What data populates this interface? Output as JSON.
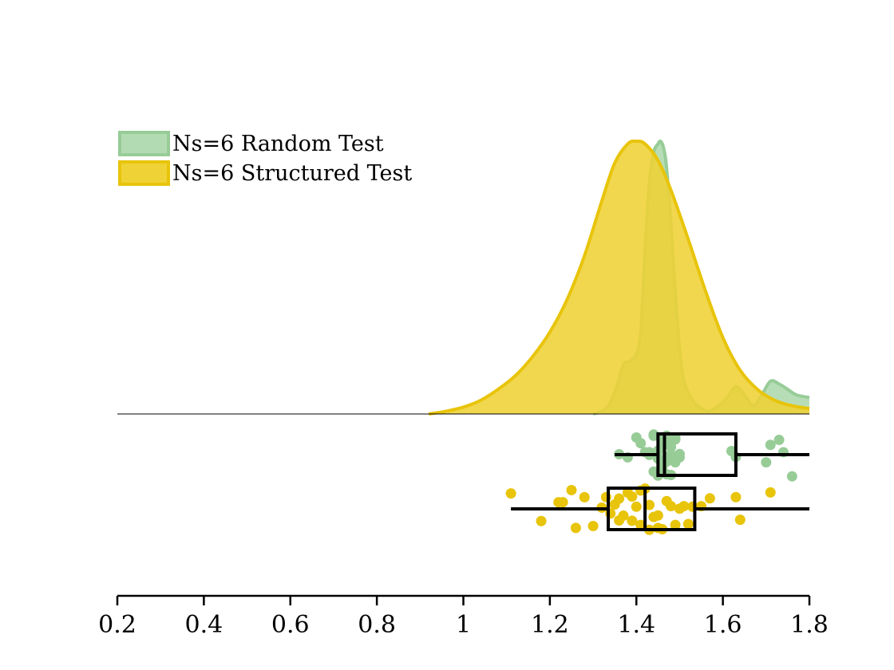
{
  "chart_data": {
    "type": "raincloud",
    "xlim": [
      0.2,
      1.8
    ],
    "xticks": [
      0.2,
      0.4,
      0.6,
      0.8,
      1,
      1.2,
      1.4,
      1.6,
      1.8
    ],
    "xtick_labels": [
      "0.2",
      "0.4",
      "0.6",
      "0.8",
      "1",
      "1.2",
      "1.4",
      "1.6",
      "1.8"
    ],
    "legend": {
      "position": "top-left"
    },
    "series": [
      {
        "name": "Ns=6 Random Test",
        "color": "#97cc97",
        "fill": "#b3dbb3",
        "density": {
          "x": [
            1.3,
            1.33,
            1.35,
            1.37,
            1.38,
            1.39,
            1.4,
            1.41,
            1.42,
            1.43,
            1.44,
            1.45,
            1.455,
            1.46,
            1.465,
            1.47,
            1.48,
            1.49,
            1.5,
            1.51,
            1.53,
            1.55,
            1.57,
            1.59,
            1.61,
            1.63,
            1.65,
            1.67,
            1.69,
            1.71,
            1.73,
            1.75,
            1.77,
            1.8
          ],
          "y": [
            0.0,
            0.02,
            0.08,
            0.18,
            0.19,
            0.2,
            0.22,
            0.3,
            0.6,
            0.85,
            0.96,
            0.99,
            1.0,
            0.99,
            0.96,
            0.9,
            0.7,
            0.45,
            0.24,
            0.12,
            0.05,
            0.02,
            0.01,
            0.03,
            0.06,
            0.1,
            0.07,
            0.03,
            0.07,
            0.12,
            0.11,
            0.09,
            0.07,
            0.06
          ]
        },
        "box": {
          "whisker_low": 1.35,
          "q1": 1.45,
          "median": 1.465,
          "q3": 1.63,
          "whisker_high": 1.8
        },
        "points": [
          1.36,
          1.38,
          1.4,
          1.41,
          1.42,
          1.43,
          1.44,
          1.44,
          1.45,
          1.45,
          1.46,
          1.46,
          1.47,
          1.47,
          1.48,
          1.48,
          1.49,
          1.49,
          1.5,
          1.5,
          1.46,
          1.44,
          1.47,
          1.45,
          1.49,
          1.43,
          1.48,
          1.46,
          1.62,
          1.63,
          1.7,
          1.71,
          1.73,
          1.76,
          1.74,
          1.46,
          1.47,
          1.48
        ]
      },
      {
        "name": "Ns=6 Structured Test",
        "color": "#e8c40a",
        "fill": "#efd235",
        "density": {
          "x": [
            0.92,
            0.96,
            1.0,
            1.04,
            1.08,
            1.12,
            1.16,
            1.2,
            1.24,
            1.28,
            1.32,
            1.35,
            1.38,
            1.4,
            1.42,
            1.45,
            1.48,
            1.52,
            1.56,
            1.6,
            1.64,
            1.68,
            1.72,
            1.76,
            1.8
          ],
          "y": [
            0.0,
            0.01,
            0.025,
            0.05,
            0.09,
            0.14,
            0.21,
            0.3,
            0.42,
            0.58,
            0.78,
            0.92,
            0.99,
            1.0,
            0.99,
            0.93,
            0.82,
            0.64,
            0.45,
            0.28,
            0.16,
            0.09,
            0.05,
            0.03,
            0.02
          ]
        },
        "box": {
          "whisker_low": 1.11,
          "q1": 1.335,
          "median": 1.42,
          "q3": 1.535,
          "whisker_high": 1.8
        },
        "points": [
          1.11,
          1.18,
          1.22,
          1.23,
          1.25,
          1.26,
          1.28,
          1.3,
          1.32,
          1.33,
          1.34,
          1.35,
          1.36,
          1.37,
          1.38,
          1.39,
          1.4,
          1.41,
          1.42,
          1.43,
          1.44,
          1.45,
          1.46,
          1.47,
          1.48,
          1.5,
          1.51,
          1.52,
          1.53,
          1.55,
          1.57,
          1.63,
          1.64,
          1.71,
          1.36,
          1.39,
          1.41,
          1.43,
          1.45,
          1.49
        ]
      }
    ]
  }
}
